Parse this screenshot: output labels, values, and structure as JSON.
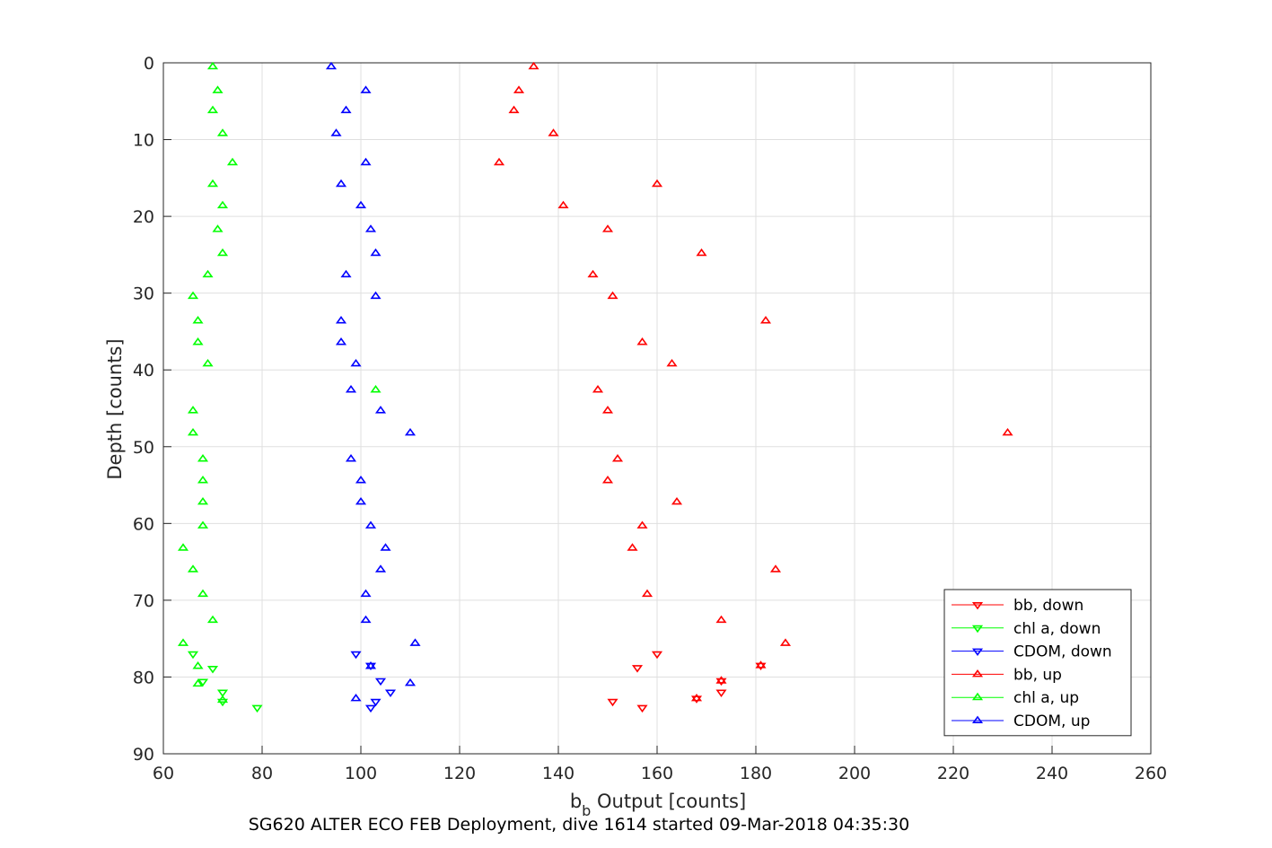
{
  "caption": "SG620 ALTER ECO FEB Deployment, dive 1614 started 09-Mar-2018 04:35:30",
  "chart_data": {
    "type": "scatter",
    "xlabel_main": "b",
    "xlabel_sub": "b",
    "xlabel_rest": " Output [counts]",
    "ylabel": "Depth [counts]",
    "xlim": [
      60,
      260
    ],
    "ylim": [
      0,
      90
    ],
    "y_reversed": true,
    "grid": true,
    "legend_position": "bottom-right",
    "x_ticks": [
      "60",
      "80",
      "100",
      "120",
      "140",
      "160",
      "180",
      "200",
      "220",
      "240",
      "260"
    ],
    "y_ticks": [
      "0",
      "10",
      "20",
      "30",
      "40",
      "50",
      "60",
      "70",
      "80",
      "90"
    ],
    "series": [
      {
        "name": "bb, down",
        "color": "#ff0000",
        "marker": "triangle-down",
        "points": [
          [
            156,
            78.8
          ],
          [
            160,
            77
          ],
          [
            173,
            80.5
          ],
          [
            173,
            82
          ],
          [
            151,
            83.2
          ],
          [
            157,
            84
          ],
          [
            181,
            78.5
          ],
          [
            168,
            82.8
          ]
        ]
      },
      {
        "name": "chl a, down",
        "color": "#00ff00",
        "marker": "triangle-down",
        "points": [
          [
            66,
            77
          ],
          [
            70,
            78.9
          ],
          [
            68,
            80.6
          ],
          [
            72,
            82
          ],
          [
            79,
            84
          ],
          [
            72,
            83.2
          ]
        ]
      },
      {
        "name": "CDOM, down",
        "color": "#0000ff",
        "marker": "triangle-down",
        "points": [
          [
            99,
            77
          ],
          [
            102,
            78.5
          ],
          [
            104,
            80.5
          ],
          [
            106,
            82
          ],
          [
            103,
            83.2
          ],
          [
            102,
            84
          ]
        ]
      },
      {
        "name": "bb, up",
        "color": "#ff0000",
        "marker": "triangle-up",
        "points": [
          [
            135,
            0.5
          ],
          [
            132,
            3.6
          ],
          [
            131,
            6.2
          ],
          [
            139,
            9.2
          ],
          [
            128,
            13
          ],
          [
            160,
            15.8
          ],
          [
            141,
            18.6
          ],
          [
            150,
            21.7
          ],
          [
            169,
            24.8
          ],
          [
            147,
            27.6
          ],
          [
            151,
            30.4
          ],
          [
            182,
            33.6
          ],
          [
            157,
            36.4
          ],
          [
            163,
            39.2
          ],
          [
            148,
            42.6
          ],
          [
            150,
            45.3
          ],
          [
            231,
            48.2
          ],
          [
            152,
            51.6
          ],
          [
            150,
            54.4
          ],
          [
            164,
            57.2
          ],
          [
            157,
            60.3
          ],
          [
            155,
            63.2
          ],
          [
            184,
            66
          ],
          [
            158,
            69.2
          ],
          [
            173,
            72.6
          ],
          [
            186,
            75.6
          ],
          [
            181,
            78.5
          ],
          [
            173,
            80.5
          ],
          [
            168,
            82.8
          ]
        ]
      },
      {
        "name": "chl a, up",
        "color": "#00ff00",
        "marker": "triangle-up",
        "points": [
          [
            70,
            0.5
          ],
          [
            71,
            3.6
          ],
          [
            70,
            6.2
          ],
          [
            72,
            9.2
          ],
          [
            74,
            13
          ],
          [
            70,
            15.8
          ],
          [
            72,
            18.6
          ],
          [
            71,
            21.7
          ],
          [
            72,
            24.8
          ],
          [
            69,
            27.6
          ],
          [
            66,
            30.4
          ],
          [
            67,
            33.6
          ],
          [
            67,
            36.4
          ],
          [
            69,
            39.2
          ],
          [
            103,
            42.6
          ],
          [
            66,
            45.3
          ],
          [
            66,
            48.2
          ],
          [
            68,
            51.6
          ],
          [
            68,
            54.4
          ],
          [
            68,
            57.2
          ],
          [
            68,
            60.3
          ],
          [
            64,
            63.2
          ],
          [
            66,
            66
          ],
          [
            68,
            69.2
          ],
          [
            70,
            72.6
          ],
          [
            64,
            75.6
          ],
          [
            67,
            78.6
          ],
          [
            67,
            80.9
          ],
          [
            72,
            83
          ]
        ]
      },
      {
        "name": "CDOM, up",
        "color": "#0000ff",
        "marker": "triangle-up",
        "points": [
          [
            94,
            0.5
          ],
          [
            101,
            3.6
          ],
          [
            97,
            6.2
          ],
          [
            95,
            9.2
          ],
          [
            101,
            13
          ],
          [
            96,
            15.8
          ],
          [
            100,
            18.6
          ],
          [
            102,
            21.7
          ],
          [
            103,
            24.8
          ],
          [
            97,
            27.6
          ],
          [
            103,
            30.4
          ],
          [
            96,
            33.6
          ],
          [
            96,
            36.4
          ],
          [
            99,
            39.2
          ],
          [
            98,
            42.6
          ],
          [
            104,
            45.3
          ],
          [
            110,
            48.2
          ],
          [
            98,
            51.6
          ],
          [
            100,
            54.4
          ],
          [
            100,
            57.2
          ],
          [
            102,
            60.3
          ],
          [
            105,
            63.2
          ],
          [
            104,
            66
          ],
          [
            101,
            69.2
          ],
          [
            101,
            72.6
          ],
          [
            111,
            75.6
          ],
          [
            102,
            78.6
          ],
          [
            110,
            80.8
          ],
          [
            99,
            82.8
          ]
        ]
      }
    ]
  }
}
